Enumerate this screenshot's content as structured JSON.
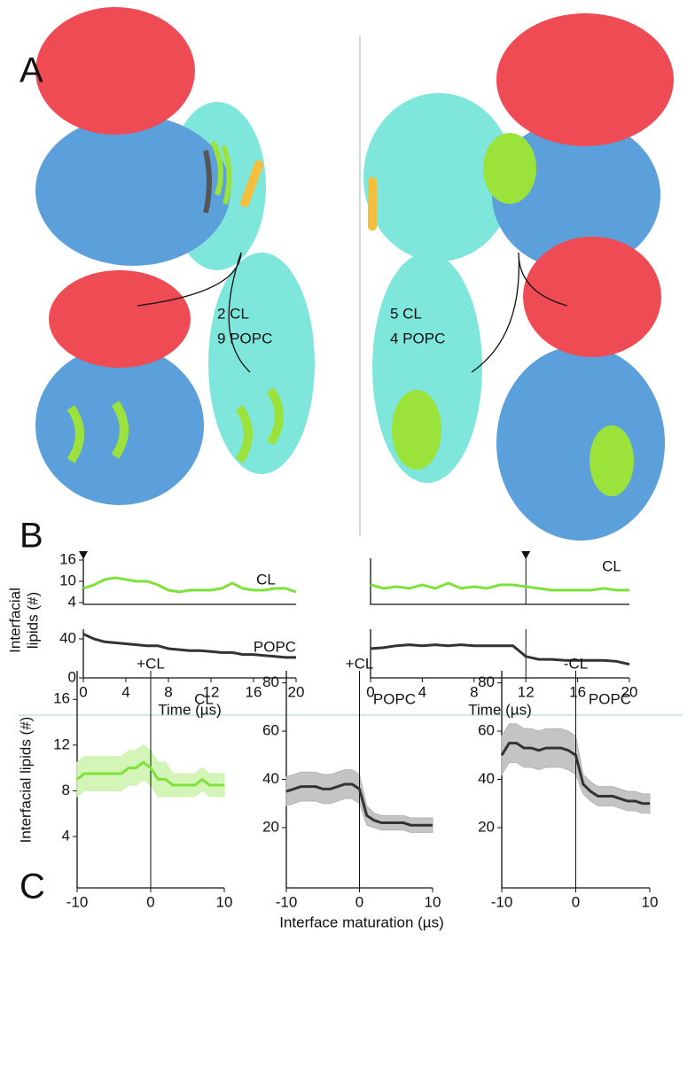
{
  "panel_labels": [
    "A",
    "B",
    "C"
  ],
  "annotations": [
    "2 CL",
    "9 POPC",
    "5 CL",
    "4 POPC"
  ],
  "chart_data": [
    {
      "type": "line",
      "y_label_lines": [
        "Interfacial",
        "lipids (#)"
      ],
      "x": [
        0,
        1,
        2,
        3,
        4,
        5,
        6,
        7,
        8,
        9,
        10,
        11,
        12,
        13,
        14,
        15,
        16,
        17,
        18,
        19,
        20
      ],
      "xlim": [
        0,
        20
      ],
      "ylim": [
        3.5,
        16.5
      ],
      "yticks": [
        4,
        10,
        16
      ],
      "marker_x": 0,
      "series": [
        {
          "name": "CL",
          "color": "#7ee23a",
          "values": [
            8,
            9,
            10.5,
            11,
            10.5,
            10,
            10,
            9,
            7.5,
            7,
            7.5,
            7.5,
            7.5,
            8,
            9.5,
            8,
            7.5,
            7.5,
            8,
            8,
            7
          ]
        }
      ]
    },
    {
      "type": "line",
      "x": [
        0,
        1,
        2,
        3,
        4,
        5,
        6,
        7,
        8,
        9,
        10,
        11,
        12,
        13,
        14,
        15,
        16,
        17,
        18,
        19,
        20
      ],
      "xlim": [
        0,
        20
      ],
      "ylim": [
        0,
        50
      ],
      "yticks": [
        0,
        40
      ],
      "xticks": [
        0,
        4,
        8,
        12,
        16,
        20
      ],
      "x_label": "Time (µs)",
      "series": [
        {
          "name": "POPC",
          "color": "#333333",
          "values": [
            45,
            40,
            37,
            36,
            35,
            34,
            33,
            33,
            30,
            29,
            28,
            28,
            27,
            26,
            26,
            24,
            24,
            23,
            22,
            21,
            21
          ]
        }
      ]
    },
    {
      "type": "line",
      "x": [
        0,
        1,
        2,
        3,
        4,
        5,
        6,
        7,
        8,
        9,
        10,
        11,
        12,
        13,
        14,
        15,
        16,
        17,
        18,
        19,
        20
      ],
      "xlim": [
        0,
        20
      ],
      "ylim": [
        3.5,
        16.5
      ],
      "marker_x": 12,
      "vline": 12,
      "series": [
        {
          "name": "CL",
          "color": "#7ee23a",
          "values": [
            9,
            8,
            8.5,
            8,
            9,
            8,
            9.5,
            8,
            8.5,
            8,
            9,
            9,
            8.5,
            8,
            7.5,
            7.5,
            7.5,
            7.5,
            8,
            7.5,
            7.5
          ]
        }
      ]
    },
    {
      "type": "line",
      "x": [
        0,
        1,
        2,
        3,
        4,
        5,
        6,
        7,
        8,
        9,
        10,
        11,
        12,
        13,
        14,
        15,
        16,
        17,
        18,
        19,
        20
      ],
      "xlim": [
        0,
        20
      ],
      "ylim": [
        0,
        50
      ],
      "xticks": [
        0,
        4,
        8,
        12,
        16,
        20
      ],
      "x_label": "Time (µs)",
      "vline": 12,
      "series": [
        {
          "color": "#333333",
          "values": [
            30,
            31,
            33,
            34,
            33,
            34,
            33,
            34,
            33,
            33,
            33,
            33,
            22,
            19,
            19,
            18,
            18,
            18,
            18,
            17,
            14
          ]
        }
      ]
    },
    {
      "type": "line",
      "title": "+CL",
      "label": "CL",
      "y_label": "Interfacial lipids (#)",
      "x": [
        -10,
        -9,
        -8,
        -7,
        -6,
        -5,
        -4,
        -3,
        -2,
        -1,
        0,
        1,
        2,
        3,
        4,
        5,
        6,
        7,
        8,
        9,
        10
      ],
      "xlim": [
        -10,
        10
      ],
      "ylim": [
        -0.5,
        18.5
      ],
      "yticks": [
        4,
        8,
        12,
        16
      ],
      "xticks": [
        -10,
        0,
        10
      ],
      "vline": 0,
      "band": {
        "color": "#c8f3a6",
        "lower": [
          7.5,
          8,
          8,
          8,
          8,
          8,
          8,
          8.5,
          8.5,
          9,
          8.5,
          7.5,
          7.5,
          7.5,
          7.5,
          7.5,
          7.5,
          8,
          7.5,
          7.5,
          7.5
        ],
        "upper": [
          10.5,
          11,
          11,
          11,
          11,
          11,
          11,
          11.5,
          11.5,
          12,
          11.5,
          10.5,
          10.5,
          9.5,
          9.5,
          9.5,
          9.5,
          10,
          9.5,
          9.5,
          9.5
        ]
      },
      "series": [
        {
          "color": "#7ee23a",
          "values": [
            9,
            9.5,
            9.5,
            9.5,
            9.5,
            9.5,
            9.5,
            10,
            10,
            10.5,
            10,
            9,
            9,
            8.5,
            8.5,
            8.5,
            8.5,
            9,
            8.5,
            8.5,
            8.5
          ]
        }
      ]
    },
    {
      "type": "line",
      "title": "+CL",
      "label": "POPC",
      "x_label": "Interface maturation (µs)",
      "x": [
        -10,
        -9,
        -8,
        -7,
        -6,
        -5,
        -4,
        -3,
        -2,
        -1,
        0,
        1,
        2,
        3,
        4,
        5,
        6,
        7,
        8,
        9,
        10
      ],
      "xlim": [
        -10,
        10
      ],
      "ylim": [
        -5,
        85
      ],
      "yticks": [
        20,
        40,
        60,
        80
      ],
      "xticks": [
        -10,
        0,
        10
      ],
      "vline": 0,
      "band": {
        "color": "#b5b5b5",
        "lower": [
          29,
          30,
          31,
          31,
          31,
          30,
          30,
          31,
          32,
          32,
          30,
          21,
          20,
          19,
          19,
          19,
          19,
          18,
          18,
          18,
          18
        ],
        "upper": [
          41,
          42,
          43,
          43,
          43,
          42,
          42,
          43,
          44,
          44,
          42,
          29,
          26,
          25,
          25,
          25,
          25,
          24,
          24,
          24,
          24
        ]
      },
      "series": [
        {
          "color": "#333333",
          "values": [
            35,
            36,
            37,
            37,
            37,
            36,
            36,
            37,
            38,
            38,
            36,
            25,
            23,
            22,
            22,
            22,
            22,
            21,
            21,
            21,
            21
          ]
        }
      ]
    },
    {
      "type": "line",
      "title": "-CL",
      "label": "POPC",
      "x": [
        -10,
        -9,
        -8,
        -7,
        -6,
        -5,
        -4,
        -3,
        -2,
        -1,
        0,
        1,
        2,
        3,
        4,
        5,
        6,
        7,
        8,
        9,
        10
      ],
      "xlim": [
        -10,
        10
      ],
      "ylim": [
        -5,
        85
      ],
      "yticks": [
        20,
        40,
        60,
        80
      ],
      "xticks": [
        -10,
        0,
        10
      ],
      "vline": 0,
      "band": {
        "color": "#b5b5b5",
        "lower": [
          42,
          47,
          47,
          45,
          45,
          44,
          45,
          45,
          45,
          44,
          42,
          34,
          31,
          29,
          29,
          29,
          28,
          27,
          27,
          26,
          26
        ],
        "upper": [
          58,
          63,
          63,
          61,
          61,
          60,
          61,
          61,
          61,
          60,
          58,
          42,
          39,
          37,
          37,
          37,
          36,
          35,
          35,
          34,
          34
        ]
      },
      "series": [
        {
          "color": "#333333",
          "values": [
            50,
            55,
            55,
            53,
            53,
            52,
            53,
            53,
            53,
            52,
            50,
            38,
            35,
            33,
            33,
            33,
            32,
            31,
            31,
            30,
            30
          ]
        }
      ]
    }
  ]
}
